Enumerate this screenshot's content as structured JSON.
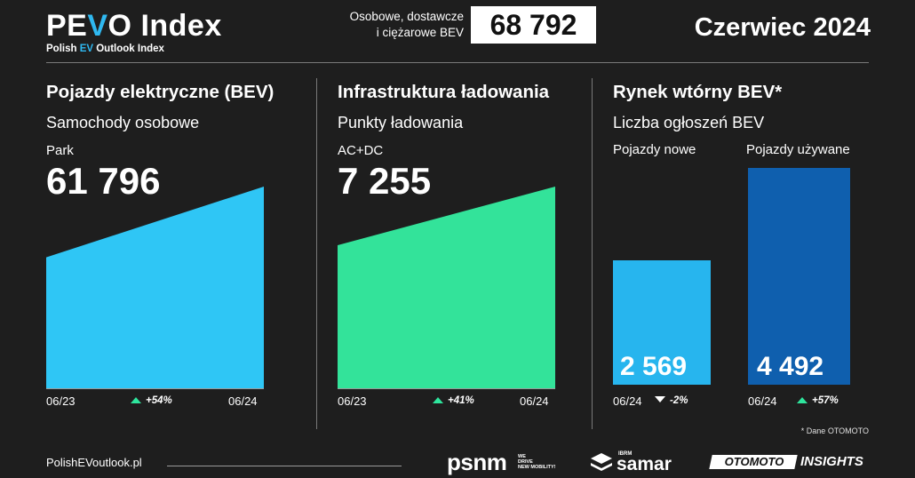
{
  "header": {
    "logo_pe": "PE",
    "logo_v": "V",
    "logo_o": "O",
    "logo_index": " Index",
    "logo_sub_pre": "Polish ",
    "logo_sub_ev": "EV",
    "logo_sub_post": " Outlook Index",
    "total_label_line1": "Osobowe, dostawcze",
    "total_label_line2": "i ciężarowe BEV",
    "total_value": "68 792",
    "period": "Czerwiec 2024"
  },
  "sections": {
    "bev": {
      "title": "Pojazdy elektryczne (BEV)",
      "subtitle": "Samochody osobowe",
      "label": "Park",
      "value": "61 796"
    },
    "charging": {
      "title": "Infrastruktura ładowania",
      "subtitle": "Punkty ładowania",
      "label": "AC+DC",
      "value": "7 255"
    },
    "used": {
      "title": "Rynek wtórny BEV*",
      "subtitle": "Liczba ogłoszeń BEV",
      "new_label": "Pojazdy nowe",
      "used_label": "Pojazdy używane"
    }
  },
  "chart_data": [
    {
      "type": "area",
      "x": [
        "06/23",
        "06/24"
      ],
      "values": [
        40128,
        61796
      ],
      "change": "+54%",
      "ylim": [
        0,
        61796
      ],
      "color": "#2fc6f5"
    },
    {
      "type": "area",
      "x": [
        "06/23",
        "06/24"
      ],
      "values": [
        5145,
        7255
      ],
      "change": "+41%",
      "ylim": [
        0,
        7255
      ],
      "color": "#33e39a"
    },
    {
      "type": "bar",
      "categories": [
        "Pojazdy nowe",
        "Pojazdy używane"
      ],
      "values": [
        2569,
        4492
      ],
      "value_labels": [
        "2 569",
        "4 492"
      ],
      "period_labels": [
        "06/24",
        "06/24"
      ],
      "changes": [
        "-2%",
        "+57%"
      ],
      "colors": [
        "#27b5ee",
        "#0f5fae"
      ]
    }
  ],
  "footnote": "* Dane OTOMOTO",
  "footer": {
    "site": "PolishEVoutlook.pl",
    "psnm": "psnm",
    "psnm_tag": "WE\nDRIVE\nNEW MOBILITY!",
    "samar_ibrm": "IBRM",
    "samar": "samar",
    "otomoto": "OTOMOTO",
    "insights": "INSIGHTS"
  },
  "colors": {
    "background": "#1e1e1e",
    "accent": "#2fb8f0",
    "up": "#2ee59d"
  }
}
